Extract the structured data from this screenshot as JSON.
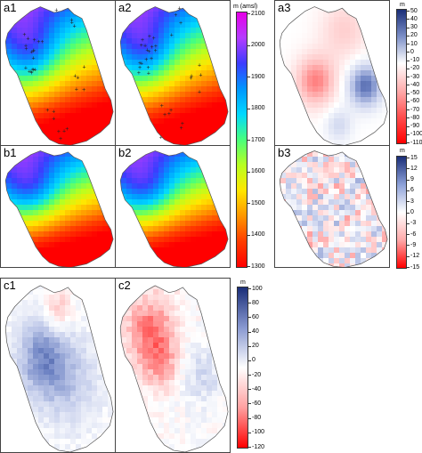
{
  "panels": {
    "a1": "a1",
    "a2": "a2",
    "a3": "a3",
    "b1": "b1",
    "b2": "b2",
    "b3": "b3",
    "c1": "c1",
    "c2": "c2"
  },
  "elevation_colorbar": {
    "unit": "m (amsl)",
    "ticks": [
      "2100",
      "2000",
      "1900",
      "1800",
      "1700",
      "1600",
      "1500",
      "1400",
      "1300"
    ],
    "colors": [
      "#e600e6",
      "#b43cff",
      "#3c3cff",
      "#0096ff",
      "#00d8ff",
      "#48ff7c",
      "#b8ff20",
      "#ffe600",
      "#ff9600",
      "#ff3c00",
      "#ff0000"
    ]
  },
  "a3_colorbar": {
    "unit": "m",
    "ticks": [
      "50",
      "40",
      "30",
      "20",
      "10",
      "0",
      "-10",
      "-20",
      "-30",
      "-40",
      "-50",
      "-60",
      "-70",
      "-80",
      "-90",
      "-100",
      "-110"
    ]
  },
  "b3_colorbar": {
    "unit": "m",
    "ticks": [
      "15",
      "12",
      "9",
      "6",
      "3",
      "0",
      "-3",
      "-6",
      "-9",
      "-12",
      "-15"
    ]
  },
  "c_colorbar": {
    "unit": "m",
    "ticks": [
      "100",
      "80",
      "60",
      "40",
      "20",
      "0",
      "-20",
      "-40",
      "-60",
      "-80",
      "-100",
      "-120"
    ]
  },
  "diverging_colors": {
    "positive": "#1a2e78",
    "zero": "#ffffff",
    "negative": "#ff0000"
  }
}
